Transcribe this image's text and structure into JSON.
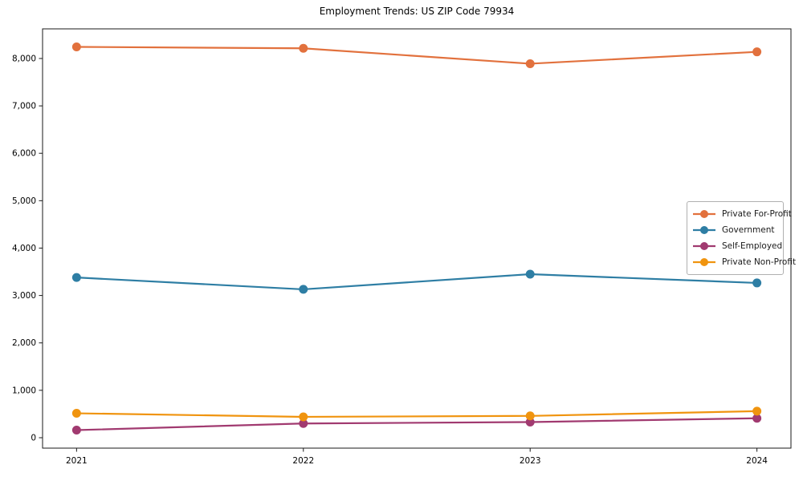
{
  "chart_data": {
    "type": "line",
    "title": "Employment Trends: US ZIP Code 79934",
    "xlabel": "",
    "ylabel": "",
    "x": [
      2021,
      2022,
      2023,
      2024
    ],
    "x_tick_labels": [
      "2021",
      "2022",
      "2023",
      "2024"
    ],
    "series": [
      {
        "name": "Private For-Profit",
        "color": "#e2713d",
        "values": [
          8245,
          8215,
          7890,
          8140
        ]
      },
      {
        "name": "Government",
        "color": "#2e7ea4",
        "values": [
          3380,
          3130,
          3450,
          3265
        ]
      },
      {
        "name": "Self-Employed",
        "color": "#a13a70",
        "values": [
          160,
          300,
          330,
          410
        ]
      },
      {
        "name": "Private Non-Profit",
        "color": "#f0940f",
        "values": [
          515,
          440,
          460,
          560
        ]
      }
    ],
    "yticks": [
      0,
      1000,
      2000,
      3000,
      4000,
      5000,
      6000,
      7000,
      8000
    ],
    "ytick_labels": [
      "0",
      "1,000",
      "2,000",
      "3,000",
      "4,000",
      "5,000",
      "6,000",
      "7,000",
      "8,000"
    ],
    "xlim": [
      2020.85,
      2024.15
    ],
    "ylim": [
      -220,
      8625
    ],
    "grid": false,
    "marker": "o",
    "legend_position": "center right",
    "axis_color": "#1a1a1a",
    "background_color": "#ffffff"
  }
}
